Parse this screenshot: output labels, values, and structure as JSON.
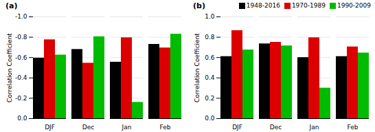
{
  "chart_data": [
    {
      "type": "bar",
      "title": "(a)",
      "categories": [
        "DJF",
        "Dec",
        "Jan",
        "Feb"
      ],
      "series": [
        {
          "name": "1948-2016",
          "color": "#000000",
          "values": [
            -0.595,
            -0.68,
            -0.555,
            -0.73
          ]
        },
        {
          "name": "1970-1989",
          "color": "#dd0000",
          "values": [
            -0.775,
            -0.545,
            -0.795,
            -0.695
          ]
        },
        {
          "name": "1990-2009",
          "color": "#00bb00",
          "values": [
            -0.625,
            -0.805,
            -0.16,
            -0.83
          ]
        }
      ],
      "ylabel": "Correlation Coefficient",
      "ylim": [
        0.0,
        -1.0
      ],
      "yticks": [
        {
          "value": 0.0,
          "label": "0.0"
        },
        -0.2,
        -0.4,
        -0.6,
        -0.8,
        {
          "value": -1.0,
          "label": "-1.0"
        }
      ],
      "grid": true
    },
    {
      "type": "bar",
      "title": "(b)",
      "categories": [
        "DJF",
        "Dec",
        "Jan",
        "Feb"
      ],
      "series": [
        {
          "name": "1948-2016",
          "color": "#000000",
          "values": [
            0.61,
            0.735,
            0.6,
            0.61
          ]
        },
        {
          "name": "1970-1989",
          "color": "#dd0000",
          "values": [
            0.865,
            0.75,
            0.795,
            0.705
          ]
        },
        {
          "name": "1990-2009",
          "color": "#00bb00",
          "values": [
            0.675,
            0.715,
            0.3,
            0.645
          ]
        }
      ],
      "ylabel": "Correlation Coefficient",
      "ylim": [
        0.0,
        1.0
      ],
      "yticks": [
        {
          "value": 0.0,
          "label": "0.0"
        },
        0.2,
        0.4,
        0.6,
        {
          "value": 0.8,
          "label": "0.8"
        },
        {
          "value": 1.0,
          "label": "1.0"
        }
      ],
      "grid": true,
      "legend": "upper right"
    }
  ]
}
